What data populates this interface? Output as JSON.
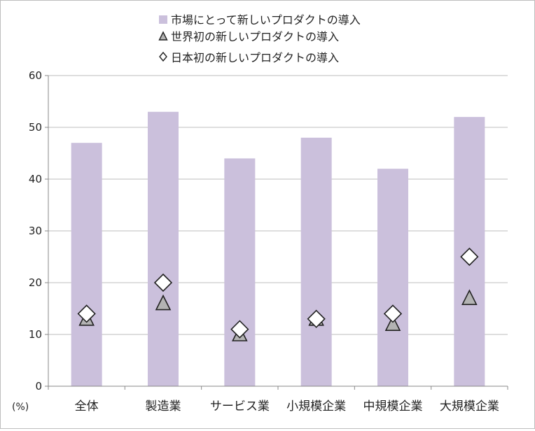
{
  "chart_data": {
    "type": "bar",
    "categories": [
      "全体",
      "製造業",
      "サービス業",
      "小規模企業",
      "中規模企業",
      "大規模企業"
    ],
    "y_unit_label": "(%)",
    "ylim": [
      0,
      60
    ],
    "yticks": [
      0,
      10,
      20,
      30,
      40,
      50,
      60
    ],
    "grid": true,
    "legend_position": "top",
    "series": [
      {
        "name": "市場にとって新しいプロダクトの導入",
        "mark": "bar",
        "color": "#cbc0dc",
        "values": [
          47,
          53,
          44,
          48,
          42,
          52
        ]
      },
      {
        "name": "世界初の新しいプロダクトの導入",
        "mark": "triangle",
        "color": "#b3b3b3",
        "values": [
          13,
          16,
          10,
          13,
          12,
          17
        ]
      },
      {
        "name": "日本初の新しいプロダクトの導入",
        "mark": "diamond",
        "color": "#ffffff",
        "values": [
          14,
          20,
          11,
          13,
          14,
          25
        ]
      }
    ]
  }
}
